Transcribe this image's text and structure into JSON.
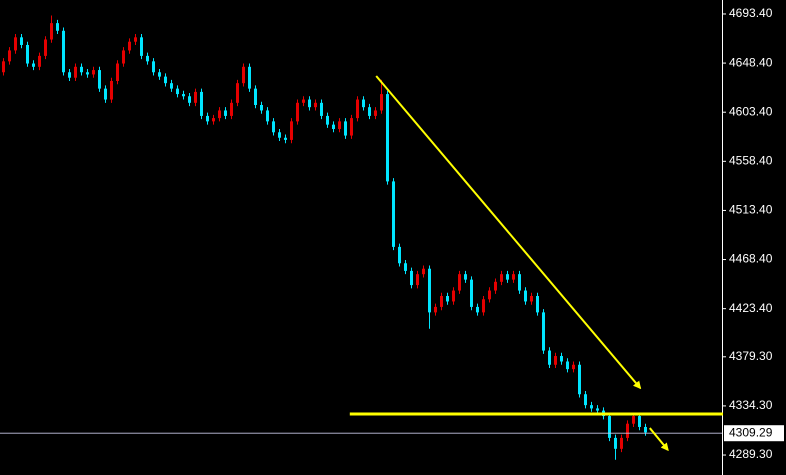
{
  "chart_data": {
    "type": "candlestick",
    "up_color": "#e60000",
    "down_color": "#00e5ff",
    "ylim": [
      4271,
      4706.2
    ],
    "yticks": [
      {
        "value": 4693.4,
        "label": "4693.40"
      },
      {
        "value": 4648.4,
        "label": "4648.40"
      },
      {
        "value": 4603.4,
        "label": "4603.40"
      },
      {
        "value": 4558.4,
        "label": "4558.40"
      },
      {
        "value": 4513.4,
        "label": "4513.40"
      },
      {
        "value": 4468.4,
        "label": "4468.40"
      },
      {
        "value": 4423.4,
        "label": "4423.40"
      },
      {
        "value": 4379.3,
        "label": "4379.30"
      },
      {
        "value": 4334.3,
        "label": "4334.30"
      },
      {
        "value": 4289.3,
        "label": "4289.30"
      }
    ],
    "last_price": 4309.29,
    "open": [
      4640,
      4650,
      4660,
      4672,
      4665,
      4648,
      4645,
      4655,
      4670,
      4685,
      4678,
      4640,
      4635,
      4645,
      4640,
      4638,
      4642,
      4625,
      4615,
      4632,
      4648,
      4660,
      4668,
      4672,
      4655,
      4650,
      4640,
      4636,
      4630,
      4625,
      4620,
      4618,
      4612,
      4622,
      4600,
      4595,
      4598,
      4605,
      4600,
      4612,
      4630,
      4645,
      4625,
      4610,
      4605,
      4595,
      4585,
      4580,
      4578,
      4595,
      4612,
      4615,
      4608,
      4612,
      4600,
      4592,
      4588,
      4595,
      4582,
      4598,
      4615,
      4608,
      4600,
      4605,
      4620,
      4540,
      4480,
      4465,
      4458,
      4445,
      4455,
      4460,
      4420,
      4425,
      4435,
      4430,
      4440,
      4455,
      4450,
      4425,
      4420,
      4432,
      4440,
      4448,
      4455,
      4450,
      4455,
      4440,
      4430,
      4435,
      4420,
      4385,
      4372,
      4380,
      4375,
      4368,
      4372,
      4345,
      4335,
      4332,
      4330,
      4325,
      4305,
      4295,
      4305,
      4318,
      4325,
      4315
    ],
    "high": [
      4653,
      4663,
      4675,
      4675,
      4668,
      4651,
      4658,
      4673,
      4692,
      4688,
      4681,
      4643,
      4648,
      4648,
      4643,
      4645,
      4645,
      4628,
      4635,
      4651,
      4663,
      4671,
      4675,
      4675,
      4658,
      4653,
      4643,
      4639,
      4633,
      4628,
      4623,
      4621,
      4625,
      4625,
      4603,
      4601,
      4608,
      4608,
      4615,
      4633,
      4648,
      4648,
      4628,
      4613,
      4608,
      4598,
      4588,
      4583,
      4598,
      4615,
      4618,
      4618,
      4615,
      4615,
      4603,
      4595,
      4598,
      4598,
      4601,
      4618,
      4618,
      4611,
      4608,
      4633,
      4623,
      4543,
      4483,
      4468,
      4461,
      4458,
      4463,
      4463,
      4428,
      4438,
      4438,
      4443,
      4458,
      4458,
      4453,
      4428,
      4435,
      4443,
      4451,
      4458,
      4458,
      4458,
      4458,
      4443,
      4438,
      4438,
      4423,
      4388,
      4383,
      4383,
      4378,
      4375,
      4375,
      4348,
      4338,
      4335,
      4333,
      4328,
      4308,
      4308,
      4321,
      4328,
      4328,
      4318
    ],
    "low": [
      4637,
      4647,
      4657,
      4662,
      4645,
      4642,
      4642,
      4652,
      4667,
      4675,
      4637,
      4632,
      4632,
      4637,
      4635,
      4635,
      4622,
      4612,
      4612,
      4629,
      4645,
      4657,
      4665,
      4652,
      4647,
      4637,
      4633,
      4627,
      4622,
      4617,
      4615,
      4609,
      4609,
      4597,
      4592,
      4592,
      4595,
      4597,
      4597,
      4609,
      4627,
      4622,
      4607,
      4602,
      4592,
      4582,
      4577,
      4575,
      4575,
      4592,
      4609,
      4605,
      4605,
      4597,
      4589,
      4585,
      4585,
      4579,
      4579,
      4595,
      4605,
      4597,
      4597,
      4602,
      4537,
      4477,
      4462,
      4455,
      4442,
      4442,
      4452,
      4405,
      4417,
      4422,
      4427,
      4427,
      4437,
      4447,
      4422,
      4417,
      4417,
      4429,
      4437,
      4445,
      4447,
      4447,
      4437,
      4427,
      4427,
      4417,
      4382,
      4369,
      4369,
      4372,
      4365,
      4365,
      4342,
      4332,
      4329,
      4327,
      4322,
      4302,
      4285,
      4292,
      4302,
      4315,
      4312,
      4307
    ],
    "close": [
      4650,
      4660,
      4672,
      4665,
      4648,
      4645,
      4655,
      4670,
      4685,
      4678,
      4640,
      4635,
      4645,
      4640,
      4638,
      4642,
      4625,
      4615,
      4632,
      4648,
      4660,
      4668,
      4672,
      4655,
      4650,
      4640,
      4636,
      4630,
      4625,
      4620,
      4618,
      4612,
      4622,
      4600,
      4595,
      4598,
      4605,
      4600,
      4612,
      4630,
      4645,
      4625,
      4610,
      4605,
      4595,
      4585,
      4580,
      4578,
      4595,
      4612,
      4615,
      4608,
      4612,
      4600,
      4592,
      4588,
      4595,
      4582,
      4598,
      4615,
      4608,
      4600,
      4605,
      4620,
      4540,
      4480,
      4465,
      4458,
      4445,
      4455,
      4460,
      4420,
      4425,
      4435,
      4430,
      4440,
      4455,
      4450,
      4425,
      4420,
      4432,
      4440,
      4448,
      4455,
      4450,
      4455,
      4440,
      4430,
      4435,
      4420,
      4385,
      4372,
      4380,
      4375,
      4368,
      4372,
      4345,
      4335,
      4332,
      4330,
      4325,
      4305,
      4295,
      4305,
      4318,
      4325,
      4315,
      4310
    ],
    "annotation_color": "#ffff00",
    "trend_lines": [
      {
        "x": [
          62.2,
          106.2
        ],
        "y": [
          4636.6,
          4350.7
        ],
        "arrow": true
      },
      {
        "x": [
          57.8,
          120
        ],
        "y": [
          4326.9,
          4326.9
        ],
        "arrow": false
      },
      {
        "x": [
          107.8,
          110.8
        ],
        "y": [
          4314,
          4294
        ],
        "arrow": true
      }
    ]
  }
}
